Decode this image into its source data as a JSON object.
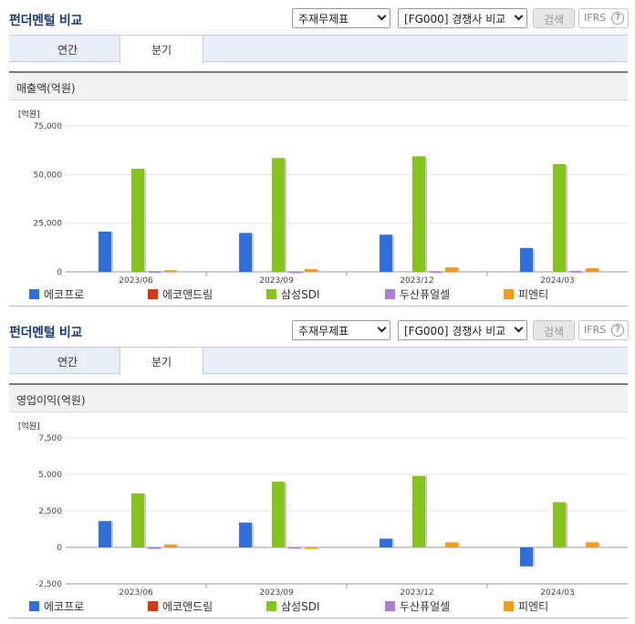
{
  "colors": {
    "series": [
      "#2e6fdb",
      "#d63a14",
      "#84c41c",
      "#a97ed8",
      "#f59a1b"
    ],
    "title": "#1a3a7a"
  },
  "panels": [
    {
      "title": "펀더멘털 비교",
      "report_select": "주재무제표",
      "compare_select": "[FG000] 경쟁사 비교",
      "search_label": "검색",
      "ifrs_label": "IFRS",
      "help_icon": "?",
      "tabs": [
        {
          "label": "연간"
        },
        {
          "label": "분기"
        }
      ],
      "active_tab": "분기",
      "chart_title": "매출액(억원)",
      "unit": "[억원]",
      "legend": [
        "에코프로",
        "에코앤드림",
        "삼성SDI",
        "두산퓨얼셀",
        "피엔티"
      ]
    },
    {
      "title": "펀더멘털 비교",
      "report_select": "주재무제표",
      "compare_select": "[FG000] 경쟁사 비교",
      "search_label": "검색",
      "ifrs_label": "IFRS",
      "help_icon": "?",
      "tabs": [
        {
          "label": "연간"
        },
        {
          "label": "분기"
        }
      ],
      "active_tab": "분기",
      "chart_title": "영업이익(억원)",
      "unit": "[억원]",
      "legend": [
        "에코프로",
        "에코앤드림",
        "삼성SDI",
        "두산퓨얼셀",
        "피엔티"
      ]
    }
  ],
  "chart_data": [
    {
      "type": "bar",
      "title": "매출액(억원)",
      "categories": [
        "2023/06",
        "2023/09",
        "2023/12",
        "2024/03"
      ],
      "ylim": [
        0,
        75000
      ],
      "yticks": [
        0,
        25000,
        50000,
        75000
      ],
      "ytick_labels": [
        "0",
        "25,000",
        "50,000",
        "75,000"
      ],
      "grid": true,
      "legend_position": "bottom",
      "series": [
        {
          "name": "에코프로",
          "values": [
            20700,
            20000,
            19100,
            12300
          ]
        },
        {
          "name": "에코앤드림",
          "values": [
            0,
            0,
            0,
            0
          ]
        },
        {
          "name": "삼성SDI",
          "values": [
            53000,
            58500,
            59400,
            55400
          ]
        },
        {
          "name": "두산퓨얼셀",
          "values": [
            400,
            300,
            400,
            500
          ]
        },
        {
          "name": "피엔티",
          "values": [
            800,
            1400,
            2300,
            1900
          ]
        }
      ]
    },
    {
      "type": "bar",
      "title": "영업이익(억원)",
      "categories": [
        "2023/06",
        "2023/09",
        "2023/12",
        "2024/03"
      ],
      "ylim": [
        -2500,
        7500
      ],
      "yticks": [
        -2500,
        0,
        2500,
        5000,
        7500
      ],
      "ytick_labels": [
        "-2,500",
        "0",
        "2,500",
        "5,000",
        "7,500"
      ],
      "grid": true,
      "legend_position": "bottom",
      "series": [
        {
          "name": "에코프로",
          "values": [
            1800,
            1700,
            600,
            -1300
          ]
        },
        {
          "name": "에코앤드림",
          "values": [
            0,
            0,
            0,
            0
          ]
        },
        {
          "name": "삼성SDI",
          "values": [
            3700,
            4500,
            4900,
            3100
          ]
        },
        {
          "name": "두산퓨얼셀",
          "values": [
            -100,
            -50,
            0,
            0
          ]
        },
        {
          "name": "피엔티",
          "values": [
            200,
            -100,
            350,
            350
          ]
        }
      ]
    }
  ]
}
